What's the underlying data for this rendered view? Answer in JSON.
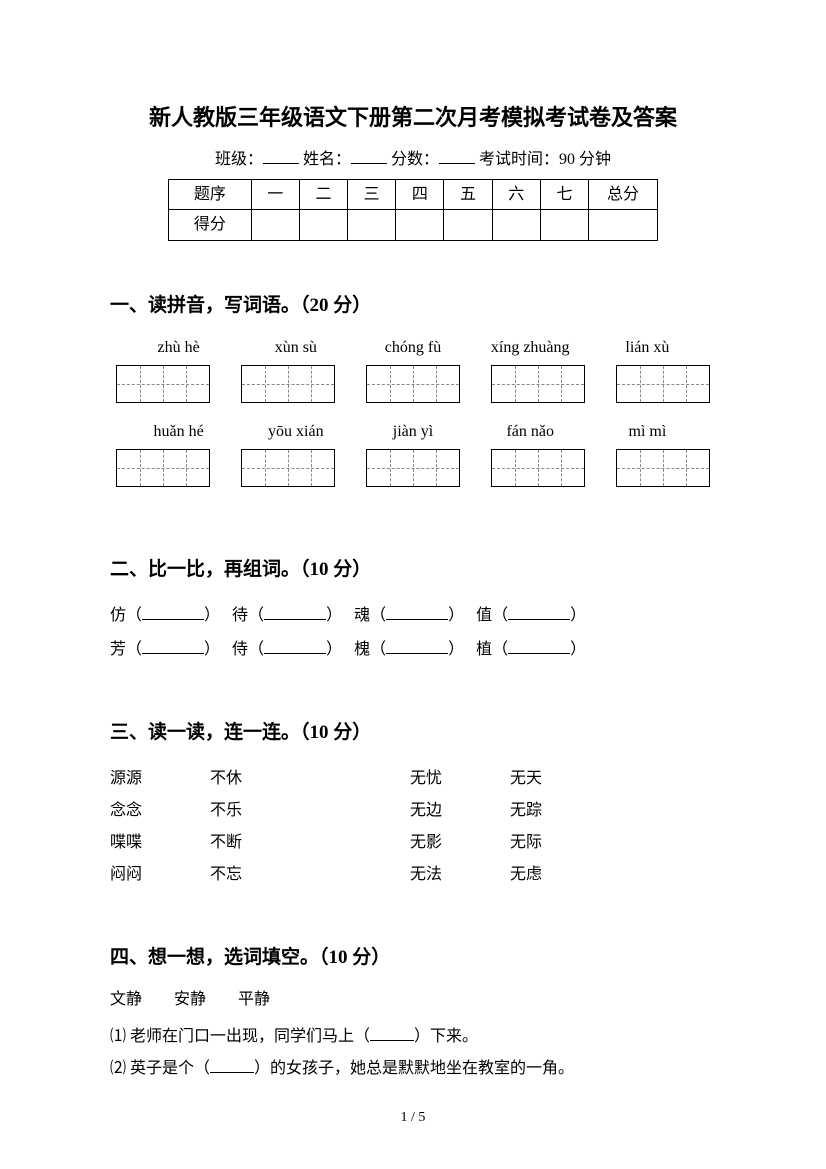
{
  "title": "新人教版三年级语文下册第二次月考模拟考试卷及答案",
  "meta": {
    "class_label": "班级：",
    "name_label": "姓名：",
    "score_label": "分数：",
    "time_label": "考试时间：90 分钟"
  },
  "score_table": {
    "row1": [
      "题序",
      "一",
      "二",
      "三",
      "四",
      "五",
      "六",
      "七",
      "总分"
    ],
    "row2_first": "得分"
  },
  "section1": {
    "heading": "一、读拼音，写词语。（20 分）",
    "pinyin_row1": [
      "zhù hè",
      "xùn sù",
      "chóng fù",
      "xíng zhuàng",
      "lián xù"
    ],
    "pinyin_row2": [
      "huǎn hé",
      "yōu xián",
      "jiàn yì",
      "fán nǎo",
      "mì mì"
    ]
  },
  "section2": {
    "heading": "二、比一比，再组词。（10 分）",
    "pairs": [
      [
        "仿",
        "待",
        "魂",
        "值"
      ],
      [
        "芳",
        "侍",
        "槐",
        "植"
      ]
    ]
  },
  "section3": {
    "heading": "三、读一读，连一连。（10 分）",
    "left_a": [
      "源源",
      "念念",
      "喋喋",
      "闷闷"
    ],
    "left_b": [
      "不休",
      "不乐",
      "不断",
      "不忘"
    ],
    "right_a": [
      "无忧",
      "无边",
      "无影",
      "无法"
    ],
    "right_b": [
      "无天",
      "无踪",
      "无际",
      "无虑"
    ]
  },
  "section4": {
    "heading": "四、想一想，选词填空。（10 分）",
    "options": "文静　　安静　　平静",
    "q1": "⑴ 老师在门口一出现，同学们马上（",
    "q1_end": "）下来。",
    "q2": "⑵ 英子是个（",
    "q2_end": "）的女孩子，她总是默默地坐在教室的一角。"
  },
  "page_number": "1 / 5"
}
